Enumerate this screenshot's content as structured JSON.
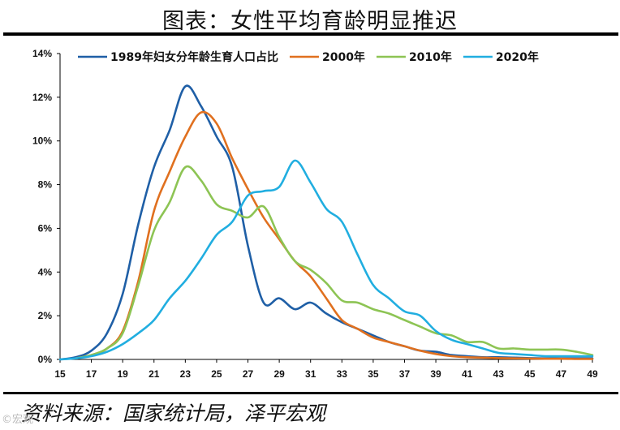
{
  "title": "图表：女性平均育龄明显推迟",
  "source": "资料来源：国家统计局，泽平宏观",
  "watermark": "©宏观",
  "chart_data": {
    "type": "line",
    "x_ticks": [
      15,
      17,
      19,
      21,
      23,
      25,
      27,
      29,
      31,
      33,
      35,
      37,
      39,
      41,
      43,
      45,
      47,
      49
    ],
    "xlim": [
      15,
      49
    ],
    "ylim": [
      0,
      14
    ],
    "y_ticks": [
      0,
      2,
      4,
      6,
      8,
      10,
      12,
      14
    ],
    "y_tick_labels": [
      "0%",
      "2%",
      "4%",
      "6%",
      "8%",
      "10%",
      "12%",
      "14%"
    ],
    "grid": false,
    "legend_position": "top",
    "series": [
      {
        "name": "1989年妇女分年龄生育人口占比",
        "color": "#1f5fa6",
        "x": [
          15,
          16,
          17,
          18,
          19,
          20,
          21,
          22,
          23,
          24,
          25,
          26,
          27,
          28,
          29,
          30,
          31,
          32,
          33,
          34,
          35,
          36,
          37,
          38,
          39,
          40,
          41,
          42,
          43,
          44,
          45,
          46,
          47,
          48,
          49
        ],
        "y": [
          0.0,
          0.1,
          0.4,
          1.2,
          3.0,
          6.2,
          8.8,
          10.5,
          12.5,
          11.6,
          10.2,
          8.8,
          5.2,
          2.6,
          2.8,
          2.3,
          2.6,
          2.1,
          1.7,
          1.4,
          1.1,
          0.8,
          0.6,
          0.4,
          0.35,
          0.2,
          0.15,
          0.1,
          0.1,
          0.08,
          0.06,
          0.05,
          0.05,
          0.05,
          0.05
        ]
      },
      {
        "name": "2000年",
        "color": "#e0701f",
        "x": [
          16,
          17,
          18,
          19,
          20,
          21,
          22,
          23,
          24,
          25,
          26,
          27,
          28,
          29,
          30,
          31,
          32,
          33,
          34,
          35,
          36,
          37,
          38,
          39,
          40,
          41,
          42,
          43,
          44,
          45,
          46,
          47,
          48,
          49
        ],
        "y": [
          0.05,
          0.2,
          0.5,
          1.3,
          3.6,
          6.8,
          8.6,
          10.2,
          11.3,
          10.8,
          9.2,
          7.8,
          6.5,
          5.5,
          4.5,
          3.8,
          2.8,
          1.8,
          1.4,
          1.0,
          0.8,
          0.6,
          0.4,
          0.25,
          0.15,
          0.1,
          0.08,
          0.06,
          0.05,
          0.04,
          0.03,
          0.03,
          0.02,
          0.02
        ]
      },
      {
        "name": "2010年",
        "color": "#8dc454",
        "x": [
          16,
          17,
          18,
          19,
          20,
          21,
          22,
          23,
          24,
          25,
          26,
          27,
          28,
          29,
          30,
          31,
          32,
          33,
          34,
          35,
          36,
          37,
          38,
          39,
          40,
          41,
          42,
          43,
          44,
          45,
          46,
          47,
          48,
          49
        ],
        "y": [
          0.05,
          0.2,
          0.5,
          1.2,
          3.4,
          5.9,
          7.2,
          8.8,
          8.2,
          7.1,
          6.8,
          6.5,
          7.0,
          5.6,
          4.5,
          4.1,
          3.5,
          2.7,
          2.6,
          2.3,
          2.1,
          1.8,
          1.5,
          1.2,
          1.1,
          0.8,
          0.8,
          0.5,
          0.5,
          0.45,
          0.45,
          0.45,
          0.35,
          0.2
        ]
      },
      {
        "name": "2020年",
        "color": "#21aee0",
        "x": [
          15,
          16,
          17,
          18,
          19,
          20,
          21,
          22,
          23,
          24,
          25,
          26,
          27,
          28,
          29,
          30,
          31,
          32,
          33,
          34,
          35,
          36,
          37,
          38,
          39,
          40,
          41,
          42,
          43,
          44,
          45,
          46,
          47,
          48,
          49
        ],
        "y": [
          0.0,
          0.05,
          0.15,
          0.35,
          0.7,
          1.2,
          1.8,
          2.8,
          3.6,
          4.6,
          5.7,
          6.3,
          7.5,
          7.7,
          7.9,
          9.1,
          8.1,
          6.9,
          6.3,
          4.8,
          3.4,
          2.8,
          2.2,
          2.0,
          1.3,
          0.9,
          0.7,
          0.5,
          0.3,
          0.25,
          0.2,
          0.15,
          0.15,
          0.15,
          0.15
        ]
      }
    ]
  }
}
